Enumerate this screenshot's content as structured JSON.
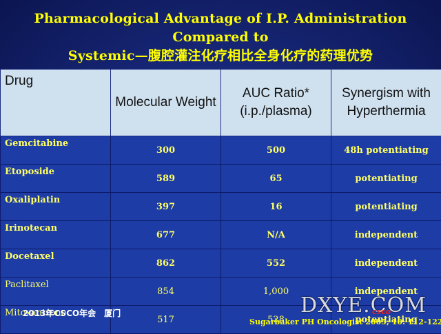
{
  "title_line1": "Pharmacological Advantage of I.P. Administration Compared to",
  "title_line2": "Systemic—腹腔灌注化疗相比全身化疗的药理优势",
  "table": {
    "headers": [
      "Drug",
      "Molecular Weight",
      "AUC Ratio* (i.p./plasma)",
      "Synergism with Hyperthermia"
    ],
    "rows": [
      {
        "drug": "Gemcitabine",
        "mw": "300",
        "auc": "500",
        "syn": "48h potentiating"
      },
      {
        "drug": "Etoposide",
        "mw": "589",
        "auc": "65",
        "syn": "potentiating"
      },
      {
        "drug": "Oxaliplatin",
        "mw": "397",
        "auc": "16",
        "syn": "potentiating"
      },
      {
        "drug": "Irinotecan",
        "mw": "677",
        "auc": "N/A",
        "syn": "independent"
      },
      {
        "drug": "Docetaxel",
        "mw": "862",
        "auc": "552",
        "syn": "independent"
      },
      {
        "drug": "Paclitaxel",
        "mw": "854",
        "auc": "1,000",
        "syn": "independent"
      },
      {
        "drug": "Mitoxantrone",
        "mw": "517",
        "auc": "528",
        "syn": "potentiating"
      }
    ]
  },
  "footer_left": "2013年CSCO年会　厦门",
  "footer_right": "Sugarbaker PH Oncologist 2005; 10: 112-122 .",
  "watermark": "DXYE.COM",
  "watermark_logo": "csco"
}
